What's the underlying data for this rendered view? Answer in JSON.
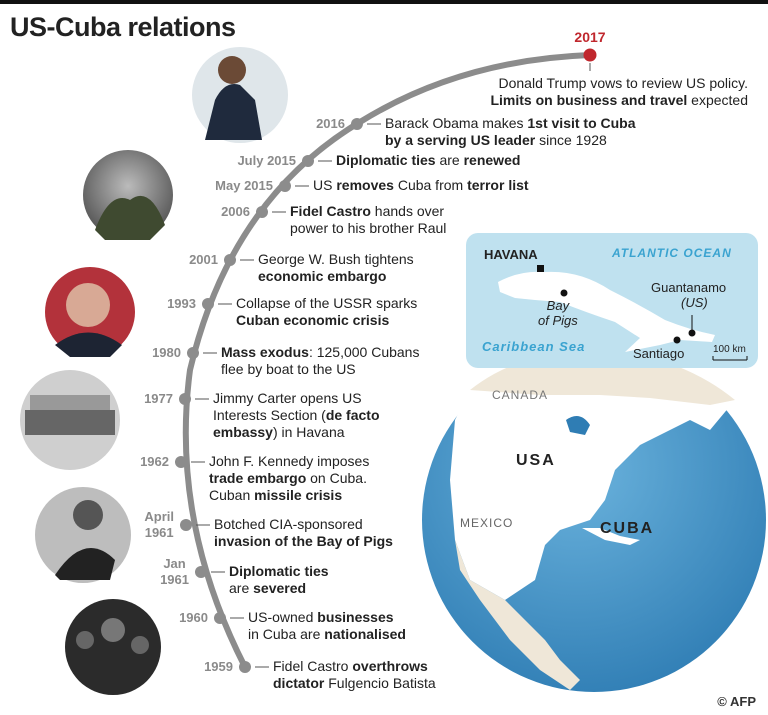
{
  "title": "US-Cuba relations",
  "colors": {
    "arc": "#8c8c8c",
    "highlight": "#c0272d",
    "sea": "#bfe1ef",
    "land": "#ffffff",
    "globe": "#4a96c8"
  },
  "events": [
    {
      "year": "2017",
      "highlight": true,
      "text": [
        [
          "Donald Trump vows to review US policy.",
          false
        ],
        [
          "\n",
          false
        ],
        [
          "Limits on business and travel",
          true
        ],
        [
          " expected",
          false
        ]
      ]
    },
    {
      "year": "2016",
      "text": [
        [
          "Barack Obama makes ",
          false
        ],
        [
          "1st visit to Cuba",
          true
        ],
        [
          "\n",
          false
        ],
        [
          "by a serving US leader",
          true
        ],
        [
          " since 1928",
          false
        ]
      ]
    },
    {
      "year": "July 2015",
      "text": [
        [
          "Diplomatic ties",
          true
        ],
        [
          " are ",
          false
        ],
        [
          "renewed",
          true
        ]
      ]
    },
    {
      "year": "May 2015",
      "text": [
        [
          "US ",
          false
        ],
        [
          "removes",
          true
        ],
        [
          " Cuba from ",
          false
        ],
        [
          "terror list",
          true
        ]
      ]
    },
    {
      "year": "2006",
      "text": [
        [
          "Fidel Castro",
          true
        ],
        [
          " hands over",
          false
        ],
        [
          "\n",
          false
        ],
        [
          "power to his brother Raul",
          false
        ]
      ]
    },
    {
      "year": "2001",
      "text": [
        [
          "George W. Bush tightens",
          false
        ],
        [
          "\n",
          false
        ],
        [
          "economic embargo",
          true
        ]
      ]
    },
    {
      "year": "1993",
      "text": [
        [
          "Collapse of the USSR sparks",
          false
        ],
        [
          "\n",
          false
        ],
        [
          "Cuban economic crisis",
          true
        ]
      ]
    },
    {
      "year": "1980",
      "text": [
        [
          "Mass exodus",
          true
        ],
        [
          ": 125,000 Cubans",
          false
        ],
        [
          "\n",
          false
        ],
        [
          "flee by boat to the US",
          false
        ]
      ]
    },
    {
      "year": "1977",
      "text": [
        [
          "Jimmy Carter opens US",
          false
        ],
        [
          "\n",
          false
        ],
        [
          "Interests Section (",
          false
        ],
        [
          "de facto",
          true
        ],
        [
          "\n",
          false
        ],
        [
          "embassy",
          true
        ],
        [
          ") in Havana",
          false
        ]
      ]
    },
    {
      "year": "1962",
      "text": [
        [
          "John F. Kennedy imposes",
          false
        ],
        [
          "\n",
          false
        ],
        [
          "trade embargo",
          true
        ],
        [
          " on Cuba.",
          false
        ],
        [
          "\n",
          false
        ],
        [
          "Cuban ",
          false
        ],
        [
          "missile crisis",
          true
        ]
      ]
    },
    {
      "year": "April\n1961",
      "text": [
        [
          "Botched CIA-sponsored",
          false
        ],
        [
          "\n",
          false
        ],
        [
          "invasion of the Bay of Pigs",
          true
        ]
      ]
    },
    {
      "year": "Jan\n1961",
      "text": [
        [
          "Diplomatic ties",
          true
        ],
        [
          "\n",
          false
        ],
        [
          "are ",
          false
        ],
        [
          "severed",
          true
        ]
      ]
    },
    {
      "year": "1960",
      "text": [
        [
          "US-owned ",
          false
        ],
        [
          "businesses",
          true
        ],
        [
          "\n",
          false
        ],
        [
          "in Cuba are ",
          false
        ],
        [
          "nationalised",
          true
        ]
      ]
    },
    {
      "year": "1959",
      "text": [
        [
          "Fidel Castro ",
          false
        ],
        [
          "overthrows",
          true
        ],
        [
          "\n",
          false
        ],
        [
          "dictator",
          true
        ],
        [
          " Fulgencio Batista",
          false
        ]
      ]
    }
  ],
  "inset_map": {
    "havana": "HAVANA",
    "atlantic": "ATLANTIC OCEAN",
    "caribbean": "Caribbean Sea",
    "bay_of_pigs": "Bay\nof Pigs",
    "guantanamo": "Guantanamo",
    "guantanamo_note": "(US)",
    "santiago": "Santiago",
    "scale": "100 km"
  },
  "globe": {
    "canada": "CANADA",
    "usa": "USA",
    "mexico": "MEXICO",
    "cuba": "CUBA"
  },
  "credit": "© AFP"
}
